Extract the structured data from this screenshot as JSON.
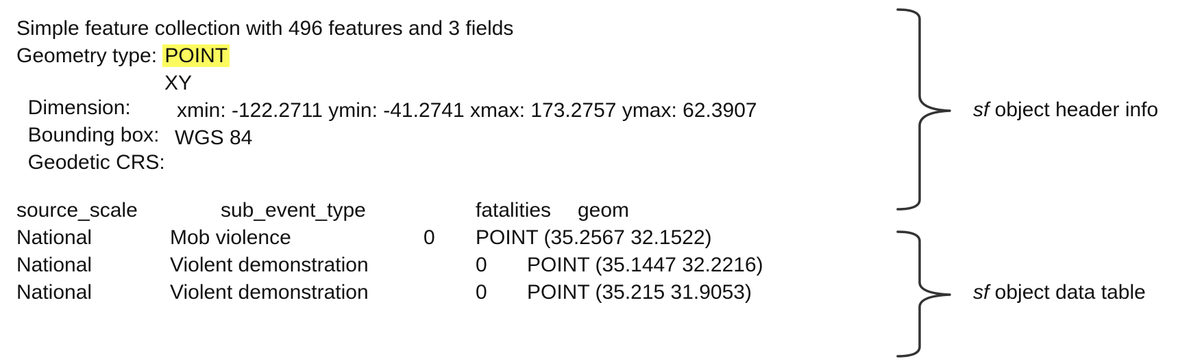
{
  "header": {
    "line1": "Simple feature collection with 496 features and 3 fields",
    "geometry_prefix": "Geometry type: ",
    "geometry_value": "POINT",
    "dimension_label": "Dimension:",
    "dimension_value": "XY",
    "bbox_label": "Bounding box:",
    "bbox_value": "xmin: -122.2711 ymin: -41.2741 xmax: 173.2757 ymax: 62.3907",
    "crs_label": "Geodetic CRS:",
    "crs_value": "WGS 84"
  },
  "table": {
    "columns": [
      "source_scale",
      "sub_event_type",
      "fatalities",
      "geom"
    ],
    "rows": [
      [
        "National",
        "Mob violence",
        "0",
        "POINT (35.2567 32.1522)"
      ],
      [
        "National",
        "Violent demonstration",
        "0",
        "POINT (35.1447 32.2216)"
      ],
      [
        "National",
        "Violent demonstration",
        "0",
        "POINT (35.215 31.9053)"
      ]
    ]
  },
  "annotations": {
    "header_info": {
      "italic": "sf",
      "text": " object header info"
    },
    "data_table": {
      "italic": "sf",
      "text": " object data table"
    }
  },
  "colors": {
    "highlight": "#fbfb5f",
    "text": "#111111",
    "brace": "#333333"
  }
}
